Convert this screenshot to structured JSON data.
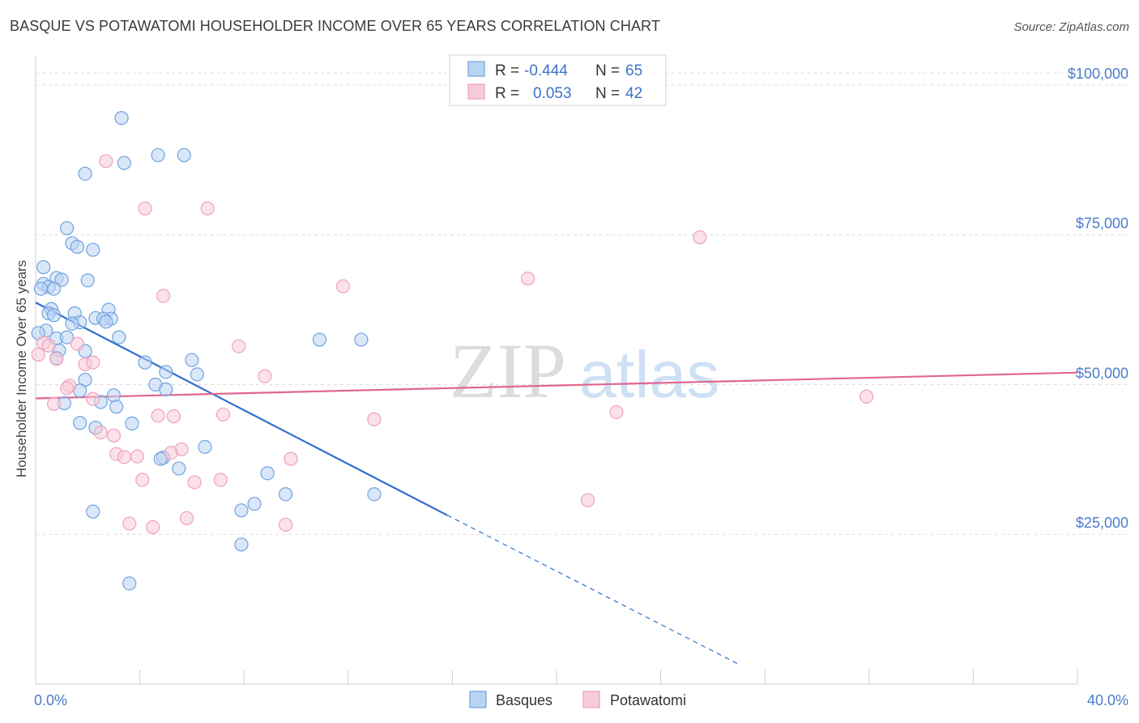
{
  "title": "BASQUE VS POTAWATOMI HOUSEHOLDER INCOME OVER 65 YEARS CORRELATION CHART",
  "source": "Source: ZipAtlas.com",
  "watermark": {
    "zip": "ZIP",
    "atlas": "atlas"
  },
  "chart_data": {
    "type": "scatter",
    "ylabel": "Householder Income Over 65 years",
    "xlim": [
      0,
      40
    ],
    "ylim": [
      0,
      105000
    ],
    "x_tick_labels": [
      "0.0%",
      "40.0%"
    ],
    "y_ticks": [
      25000,
      50000,
      75000,
      100000
    ],
    "y_tick_labels": [
      "$25,000",
      "$50,000",
      "$75,000",
      "$100,000"
    ],
    "grid": "horizontal dashed",
    "legend_top": [
      {
        "r_label": "R =",
        "r": "-0.444",
        "n_label": "N =",
        "n": "65",
        "color": "#6fa3e0"
      },
      {
        "r_label": "R =",
        "r": "0.053",
        "n_label": "N =",
        "n": "42",
        "color": "#f0a1bb"
      }
    ],
    "series": [
      {
        "name": "Basques",
        "color": "#6fa3e0",
        "fill": "#b9d3f2",
        "trend": {
          "x0": 0,
          "y0": 63700,
          "x1": 15.8,
          "y1": 28200,
          "dash_to_x": 27,
          "dash_to_y": 3300
        },
        "points": [
          [
            3.3,
            94500
          ],
          [
            4.7,
            88300
          ],
          [
            5.7,
            88300
          ],
          [
            3.4,
            87000
          ],
          [
            1.9,
            85200
          ],
          [
            1.2,
            76100
          ],
          [
            1.4,
            73600
          ],
          [
            1.6,
            73000
          ],
          [
            2.2,
            72500
          ],
          [
            0.3,
            69600
          ],
          [
            0.8,
            67800
          ],
          [
            1.0,
            67500
          ],
          [
            2.0,
            67400
          ],
          [
            0.3,
            66800
          ],
          [
            0.5,
            66300
          ],
          [
            0.7,
            66000
          ],
          [
            0.2,
            66000
          ],
          [
            0.6,
            62600
          ],
          [
            2.8,
            62500
          ],
          [
            0.5,
            61900
          ],
          [
            1.5,
            61900
          ],
          [
            0.7,
            61600
          ],
          [
            2.3,
            61100
          ],
          [
            2.9,
            61000
          ],
          [
            2.6,
            61000
          ],
          [
            1.7,
            60400
          ],
          [
            1.4,
            60200
          ],
          [
            2.7,
            60500
          ],
          [
            0.4,
            59000
          ],
          [
            0.1,
            58600
          ],
          [
            3.2,
            57900
          ],
          [
            0.8,
            57700
          ],
          [
            1.2,
            57900
          ],
          [
            10.9,
            57500
          ],
          [
            12.5,
            57500
          ],
          [
            0.9,
            55700
          ],
          [
            1.9,
            55600
          ],
          [
            0.8,
            54400
          ],
          [
            6.0,
            54100
          ],
          [
            4.2,
            53700
          ],
          [
            5.0,
            52100
          ],
          [
            6.2,
            51700
          ],
          [
            1.9,
            50800
          ],
          [
            4.6,
            50000
          ],
          [
            5.0,
            49200
          ],
          [
            1.7,
            49000
          ],
          [
            3.0,
            48200
          ],
          [
            2.5,
            47100
          ],
          [
            1.1,
            46900
          ],
          [
            3.1,
            46300
          ],
          [
            1.7,
            43600
          ],
          [
            3.7,
            43500
          ],
          [
            2.3,
            42800
          ],
          [
            6.5,
            39600
          ],
          [
            4.9,
            37800
          ],
          [
            4.8,
            37600
          ],
          [
            5.5,
            36000
          ],
          [
            8.9,
            35200
          ],
          [
            9.6,
            31700
          ],
          [
            13.0,
            31700
          ],
          [
            8.4,
            30100
          ],
          [
            7.9,
            29000
          ],
          [
            2.2,
            28800
          ],
          [
            7.9,
            23300
          ],
          [
            3.6,
            16800
          ]
        ]
      },
      {
        "name": "Potawatomi",
        "color": "#f0a1bb",
        "fill": "#f8cbd9",
        "trend": {
          "x0": 0,
          "y0": 47700,
          "x1": 40,
          "y1": 52000
        },
        "points": [
          [
            2.7,
            87300
          ],
          [
            4.2,
            79400
          ],
          [
            6.6,
            79400
          ],
          [
            25.5,
            74600
          ],
          [
            18.9,
            67700
          ],
          [
            4.9,
            64800
          ],
          [
            11.8,
            66400
          ],
          [
            0.3,
            57000
          ],
          [
            1.6,
            56800
          ],
          [
            0.5,
            56500
          ],
          [
            7.8,
            56400
          ],
          [
            0.8,
            54300
          ],
          [
            1.9,
            53400
          ],
          [
            2.2,
            53700
          ],
          [
            8.8,
            51400
          ],
          [
            1.3,
            49800
          ],
          [
            1.2,
            49400
          ],
          [
            31.9,
            48000
          ],
          [
            2.2,
            47600
          ],
          [
            0.7,
            46800
          ],
          [
            7.2,
            45000
          ],
          [
            22.3,
            45400
          ],
          [
            4.7,
            44800
          ],
          [
            5.3,
            44700
          ],
          [
            13.0,
            44200
          ],
          [
            2.5,
            42000
          ],
          [
            3.0,
            41500
          ],
          [
            5.6,
            39200
          ],
          [
            5.2,
            38600
          ],
          [
            3.1,
            38400
          ],
          [
            3.9,
            38000
          ],
          [
            3.4,
            37900
          ],
          [
            9.8,
            37600
          ],
          [
            4.1,
            34100
          ],
          [
            7.1,
            34100
          ],
          [
            6.1,
            33700
          ],
          [
            21.2,
            30700
          ],
          [
            5.8,
            27700
          ],
          [
            3.6,
            26800
          ],
          [
            9.6,
            26600
          ],
          [
            4.5,
            26200
          ],
          [
            0.1,
            55000
          ]
        ]
      }
    ]
  }
}
